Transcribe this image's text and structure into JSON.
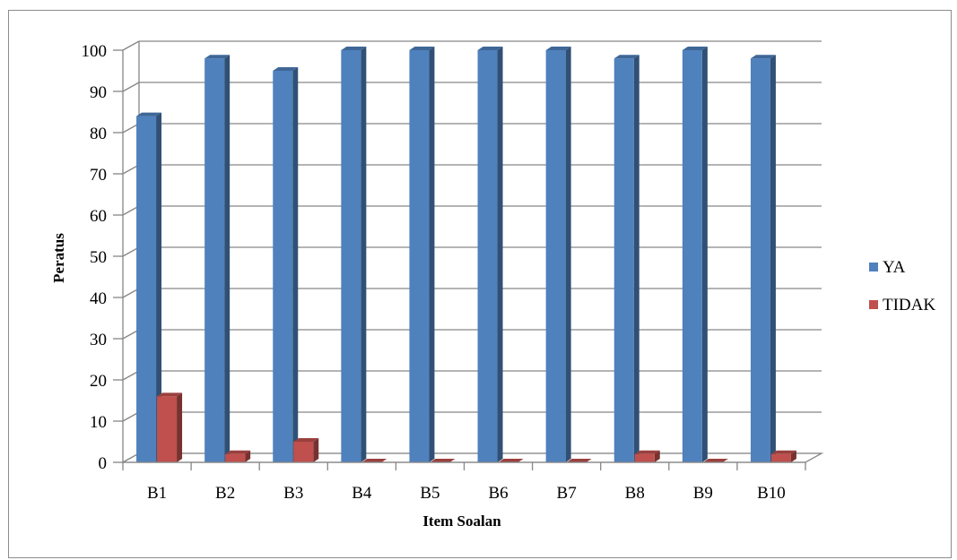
{
  "chart_data": {
    "type": "bar",
    "title": "",
    "xlabel": "Item Soalan",
    "ylabel": "Peratus",
    "ylim": [
      0,
      100
    ],
    "yticks": [
      0,
      10,
      20,
      30,
      40,
      50,
      60,
      70,
      80,
      90,
      100
    ],
    "categories": [
      "B1",
      "B2",
      "B3",
      "B4",
      "B5",
      "B6",
      "B7",
      "B8",
      "B9",
      "B10"
    ],
    "series": [
      {
        "name": "YA",
        "color": "#4f81bd",
        "values": [
          84,
          98,
          95,
          100,
          100,
          100,
          100,
          98,
          100,
          98
        ]
      },
      {
        "name": "TIDAK",
        "color": "#c0504d",
        "values": [
          16,
          2,
          5,
          0,
          0,
          0,
          0,
          2,
          0,
          2
        ]
      }
    ],
    "grid": true,
    "legend_position": "right",
    "style": "3d-clustered-column"
  }
}
